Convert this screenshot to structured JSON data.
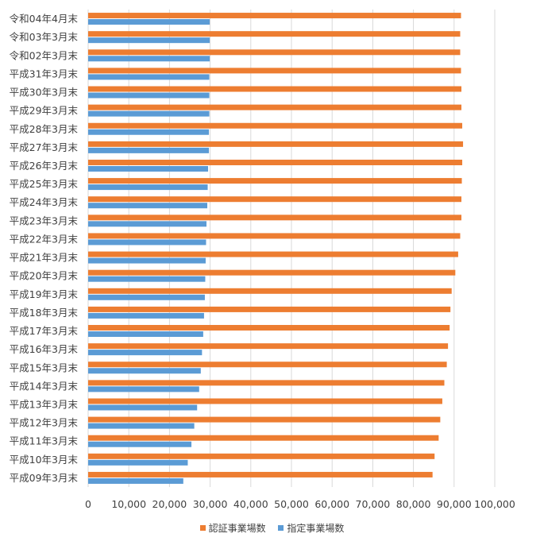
{
  "chart_data": {
    "type": "bar",
    "orientation": "horizontal",
    "categories": [
      "令和04年4月末",
      "令和03年3月末",
      "令和02年3月末",
      "平成31年3月末",
      "平成30年3月末",
      "平成29年3月末",
      "平成28年3月末",
      "平成27年3月末",
      "平成26年3月末",
      "平成25年3月末",
      "平成24年3月末",
      "平成23年3月末",
      "平成22年3月末",
      "平成21年3月末",
      "平成20年3月末",
      "平成19年3月末",
      "平成18年3月末",
      "平成17年3月末",
      "平成16年3月末",
      "平成15年3月末",
      "平成14年3月末",
      "平成13年3月末",
      "平成12年3月末",
      "平成11年3月末",
      "平成10年3月末",
      "平成09年3月末"
    ],
    "series": [
      {
        "name": "認証事業場数",
        "color": "#ED7D31",
        "values": [
          91700,
          91500,
          91500,
          91700,
          91800,
          91800,
          92000,
          92200,
          92000,
          91900,
          91800,
          91800,
          91500,
          91000,
          90300,
          89400,
          89100,
          88900,
          88500,
          88200,
          87600,
          87100,
          86600,
          86200,
          85200,
          84700
        ]
      },
      {
        "name": "指定事業場数",
        "color": "#5B9BD5",
        "values": [
          29900,
          29900,
          29900,
          29800,
          29800,
          29800,
          29700,
          29700,
          29500,
          29400,
          29300,
          29100,
          29000,
          28900,
          28800,
          28700,
          28500,
          28300,
          28000,
          27700,
          27300,
          26800,
          26100,
          25400,
          24500,
          23400
        ]
      }
    ],
    "xlim": [
      0,
      100000
    ],
    "xticks": [
      "0",
      "10,000",
      "20,000",
      "30,000",
      "40,000",
      "50,000",
      "60,000",
      "70,000",
      "80,000",
      "90,000",
      "100,000"
    ],
    "grid": "vertical",
    "legend_position": "bottom"
  }
}
